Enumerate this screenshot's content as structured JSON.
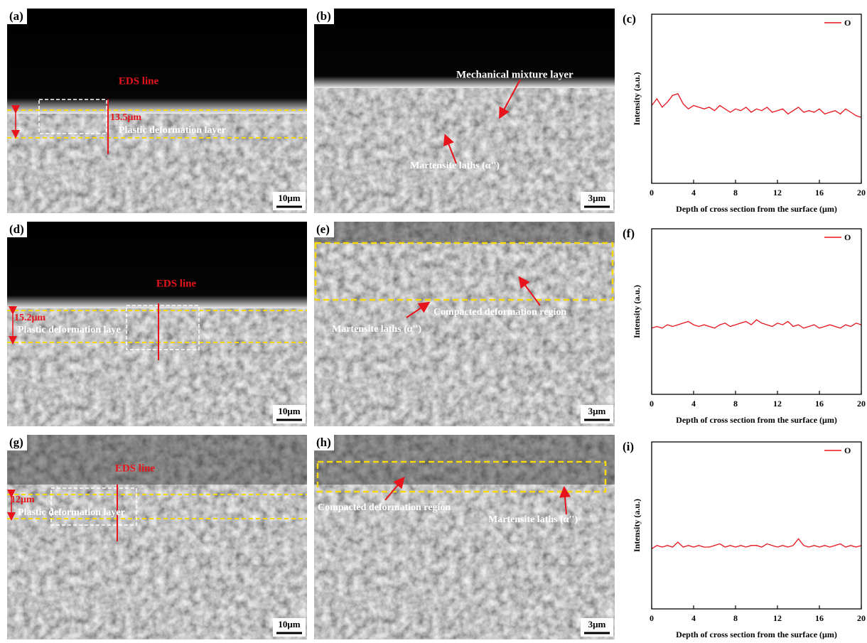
{
  "images": [
    {
      "label": "(a)",
      "annotations": [
        "EDS line",
        "13.5μm",
        "Plastic deformation layer"
      ],
      "scale_bar": "10μm"
    },
    {
      "label": "(b)",
      "annotations": [
        "Mechanical mixture layer",
        "Martensite laths (α'')"
      ],
      "scale_bar": "3μm"
    },
    {
      "label": "(d)",
      "annotations": [
        "EDS line",
        "15.2μm",
        "Plastic deformation laye"
      ],
      "scale_bar": "10μm"
    },
    {
      "label": "(e)",
      "annotations": [
        "Compacted deformation region",
        "Martensite laths (α'')"
      ],
      "scale_bar": "3μm"
    },
    {
      "label": "(g)",
      "annotations": [
        "EDS line",
        "12μm",
        "Plastic deformation layer"
      ],
      "scale_bar": "10μm"
    },
    {
      "label": "(h)",
      "annotations": [
        "Compacted deformation region",
        "Martensite laths (α'')"
      ],
      "scale_bar": "3μm"
    }
  ],
  "chart_data": [
    {
      "type": "line",
      "panel_label": "(c)",
      "x_label": "Depth of cross section from the surface (μm)",
      "y_label": "Intensity (a.u.)",
      "x": [
        0,
        0.5,
        1,
        1.5,
        2,
        2.5,
        3,
        3.5,
        4,
        4.5,
        5,
        5.5,
        6,
        6.5,
        7,
        7.5,
        8,
        8.5,
        9,
        9.5,
        10,
        10.5,
        11,
        11.5,
        12,
        12.5,
        13,
        13.5,
        14,
        14.5,
        15,
        15.5,
        16,
        16.5,
        17,
        17.5,
        18,
        18.5,
        19,
        19.5,
        20
      ],
      "series": [
        {
          "name": "O",
          "color": "#e8141c",
          "values": [
            46,
            50,
            45,
            48,
            52,
            53,
            47,
            44,
            46,
            45,
            44,
            45,
            43,
            46,
            44,
            42,
            44,
            43,
            45,
            42,
            44,
            43,
            45,
            42,
            43,
            44,
            41,
            43,
            45,
            42,
            43,
            42,
            44,
            41,
            42,
            43,
            41,
            44,
            42,
            40,
            39
          ]
        }
      ],
      "xlim": [
        0,
        20
      ],
      "xticks": [
        0,
        4,
        8,
        12,
        16,
        20
      ],
      "ylim": [
        0,
        100
      ],
      "legend": "top-right"
    },
    {
      "type": "line",
      "panel_label": "(f)",
      "x_label": "Depth of cross section from the surface (μm)",
      "y_label": "Intensity (a.u.)",
      "x": [
        0,
        0.5,
        1,
        1.5,
        2,
        2.5,
        3,
        3.5,
        4,
        4.5,
        5,
        5.5,
        6,
        6.5,
        7,
        7.5,
        8,
        8.5,
        9,
        9.5,
        10,
        10.5,
        11,
        11.5,
        12,
        12.5,
        13,
        13.5,
        14,
        14.5,
        15,
        15.5,
        16,
        16.5,
        17,
        17.5,
        18,
        18.5,
        19,
        19.5,
        20
      ],
      "series": [
        {
          "name": "O",
          "color": "#e8141c",
          "values": [
            40,
            41,
            40,
            42,
            41,
            42,
            43,
            44,
            42,
            41,
            42,
            41,
            40,
            42,
            43,
            41,
            42,
            43,
            44,
            42,
            45,
            43,
            42,
            41,
            43,
            42,
            44,
            41,
            42,
            40,
            41,
            42,
            40,
            41,
            42,
            41,
            40,
            42,
            41,
            43,
            42
          ]
        }
      ],
      "xlim": [
        0,
        20
      ],
      "xticks": [
        0,
        4,
        8,
        12,
        16,
        20
      ],
      "ylim": [
        0,
        100
      ],
      "legend": "top-right"
    },
    {
      "type": "line",
      "panel_label": "(i)",
      "x_label": "Depth of cross section from the surface (μm)",
      "y_label": "Intensity (a.u.)",
      "x": [
        0,
        0.5,
        1,
        1.5,
        2,
        2.5,
        3,
        3.5,
        4,
        4.5,
        5,
        5.5,
        6,
        6.5,
        7,
        7.5,
        8,
        8.5,
        9,
        9.5,
        10,
        10.5,
        11,
        11.5,
        12,
        12.5,
        13,
        13.5,
        14,
        14.5,
        15,
        15.5,
        16,
        16.5,
        17,
        17.5,
        18,
        18.5,
        19,
        19.5,
        20
      ],
      "series": [
        {
          "name": "O",
          "color": "#e8141c",
          "values": [
            36,
            38,
            37,
            38,
            37,
            40,
            37,
            38,
            37,
            38,
            37,
            37,
            38,
            39,
            37,
            38,
            37,
            38,
            37,
            38,
            38,
            37,
            39,
            38,
            37,
            38,
            37,
            38,
            42,
            38,
            37,
            38,
            37,
            38,
            37,
            38,
            39,
            37,
            38,
            37,
            38
          ]
        }
      ],
      "xlim": [
        0,
        20
      ],
      "xticks": [
        0,
        4,
        8,
        12,
        16,
        20
      ],
      "ylim": [
        0,
        100
      ],
      "legend": "top-right"
    }
  ]
}
